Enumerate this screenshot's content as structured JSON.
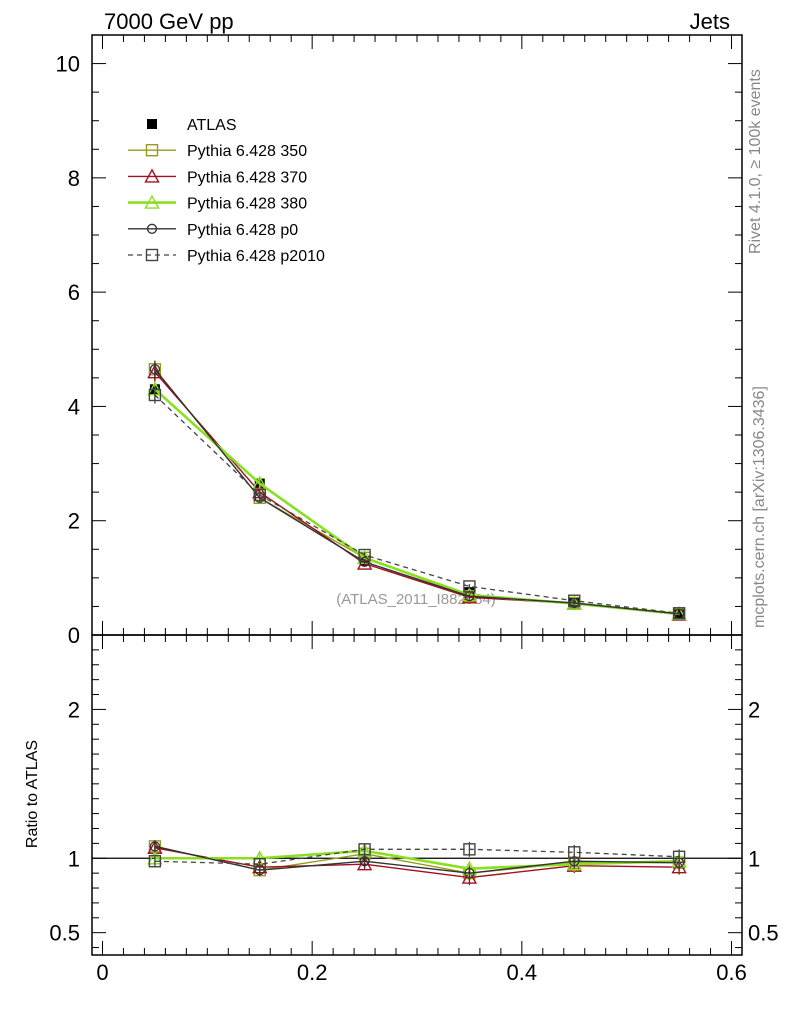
{
  "header": {
    "left": "7000 GeV pp",
    "right": "Jets"
  },
  "side_labels": {
    "rivet": "Rivet 4.1.0, ≥ 100k events",
    "mcplots": "mcplots.cern.ch [arXiv:1306.3436]"
  },
  "watermark": "(ATLAS_2011_I882984)",
  "chart_data": [
    {
      "type": "line",
      "panel": "main",
      "x": [
        0.05,
        0.15,
        0.25,
        0.35,
        0.45,
        0.55
      ],
      "xlim": [
        -0.01,
        0.61
      ],
      "ylim": [
        0,
        10.5
      ],
      "yticks": [
        0,
        2,
        4,
        6,
        8,
        10
      ],
      "ytick_labels": [
        "0",
        "2",
        "4",
        "6",
        "8",
        "10"
      ],
      "legend_position": "top-left",
      "series": [
        {
          "name": "ATLAS",
          "color": "#000000",
          "marker": "filled-square",
          "line": "none",
          "values": [
            4.3,
            2.65,
            1.3,
            0.75,
            0.57,
            0.38
          ],
          "errors": [
            0.2,
            0.12,
            0.06,
            0.05,
            0.04,
            0.03
          ]
        },
        {
          "name": "Pythia 6.428 350",
          "color": "#9a9a1e",
          "marker": "open-square",
          "line": "solid",
          "values": [
            4.65,
            2.4,
            1.35,
            0.68,
            0.56,
            0.36
          ],
          "errors": [
            0.15,
            0.08,
            0.05,
            0.04,
            0.03,
            0.02
          ]
        },
        {
          "name": "Pythia 6.428 370",
          "color": "#a01020",
          "marker": "open-triangle",
          "line": "solid",
          "values": [
            4.6,
            2.5,
            1.25,
            0.66,
            0.55,
            0.36
          ],
          "errors": [
            0.15,
            0.08,
            0.05,
            0.04,
            0.03,
            0.02
          ]
        },
        {
          "name": "Pythia 6.428 380",
          "color": "#88e020",
          "marker": "open-triangle",
          "line": "solid-thick",
          "values": [
            4.3,
            2.65,
            1.35,
            0.7,
            0.55,
            0.37
          ],
          "errors": [
            0.15,
            0.08,
            0.05,
            0.04,
            0.03,
            0.02
          ]
        },
        {
          "name": "Pythia 6.428 p0",
          "color": "#333333",
          "marker": "open-circle",
          "line": "solid",
          "values": [
            4.65,
            2.4,
            1.28,
            0.68,
            0.56,
            0.37
          ],
          "errors": [
            0.15,
            0.08,
            0.05,
            0.04,
            0.03,
            0.02
          ]
        },
        {
          "name": "Pythia 6.428 p2010",
          "color": "#444444",
          "marker": "open-square",
          "line": "dashed",
          "values": [
            4.2,
            2.45,
            1.4,
            0.85,
            0.6,
            0.38
          ],
          "errors": [
            0.15,
            0.08,
            0.05,
            0.04,
            0.03,
            0.02
          ]
        }
      ]
    },
    {
      "type": "line",
      "panel": "ratio",
      "ylabel": "Ratio to ATLAS",
      "x": [
        0.05,
        0.15,
        0.25,
        0.35,
        0.45,
        0.55
      ],
      "xlim": [
        -0.01,
        0.61
      ],
      "xticks": [
        0,
        0.2,
        0.4,
        0.6
      ],
      "xtick_labels": [
        "0",
        "0.2",
        "0.4",
        "0.6"
      ],
      "ylim": [
        0.35,
        2.5
      ],
      "yticks": [
        0.5,
        1,
        2
      ],
      "ytick_labels": [
        "0.5",
        "1",
        "2"
      ],
      "reference": 1,
      "series": [
        {
          "name": "Pythia 6.428 350",
          "color": "#9a9a1e",
          "marker": "open-square",
          "line": "solid",
          "values": [
            1.08,
            0.92,
            1.03,
            0.9,
            0.97,
            0.97
          ],
          "errors": [
            0.04,
            0.04,
            0.04,
            0.05,
            0.05,
            0.05
          ]
        },
        {
          "name": "Pythia 6.428 370",
          "color": "#a01020",
          "marker": "open-triangle",
          "line": "solid",
          "values": [
            1.07,
            0.94,
            0.96,
            0.87,
            0.95,
            0.94
          ],
          "errors": [
            0.04,
            0.04,
            0.04,
            0.05,
            0.05,
            0.05
          ]
        },
        {
          "name": "Pythia 6.428 380",
          "color": "#88e020",
          "marker": "open-triangle",
          "line": "solid-thick",
          "values": [
            1.0,
            1.0,
            1.05,
            0.93,
            0.96,
            0.98
          ],
          "errors": [
            0.04,
            0.04,
            0.04,
            0.05,
            0.05,
            0.05
          ]
        },
        {
          "name": "Pythia 6.428 p0",
          "color": "#333333",
          "marker": "open-circle",
          "line": "solid",
          "values": [
            1.08,
            0.92,
            0.98,
            0.9,
            0.98,
            0.97
          ],
          "errors": [
            0.04,
            0.04,
            0.04,
            0.05,
            0.05,
            0.05
          ]
        },
        {
          "name": "Pythia 6.428 p2010",
          "color": "#444444",
          "marker": "open-square",
          "line": "dashed",
          "values": [
            0.98,
            0.96,
            1.06,
            1.06,
            1.04,
            1.01
          ],
          "errors": [
            0.04,
            0.04,
            0.04,
            0.05,
            0.05,
            0.05
          ]
        }
      ]
    }
  ]
}
